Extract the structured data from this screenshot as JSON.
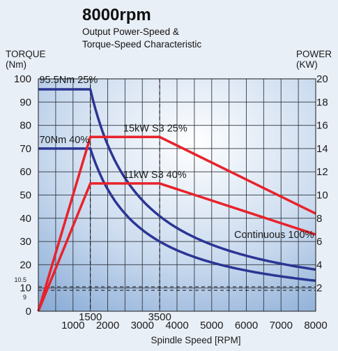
{
  "chart_data": {
    "type": "line",
    "title": "8000rpm",
    "subtitle_lines": [
      "Output Power-Speed &",
      "Torque-Speed Characteristic"
    ],
    "xlabel": "Spindle Speed [RPM]",
    "ylabel_left_lines": [
      "TORQUE",
      "(Nm)"
    ],
    "ylabel_right_lines": [
      "POWER",
      "(KW)"
    ],
    "xlim": [
      0,
      8000
    ],
    "ylim_left": [
      0,
      100
    ],
    "ylim_right": [
      0,
      20
    ],
    "x_ticks": [
      {
        "value": 1000,
        "label": "1000",
        "row": 2
      },
      {
        "value": 1500,
        "label": "1500",
        "row": 1
      },
      {
        "value": 2000,
        "label": "2000",
        "row": 2
      },
      {
        "value": 3000,
        "label": "3000",
        "row": 2
      },
      {
        "value": 3500,
        "label": "3500",
        "row": 1
      },
      {
        "value": 4000,
        "label": "4000",
        "row": 2
      },
      {
        "value": 5000,
        "label": "5000",
        "row": 2
      },
      {
        "value": 6000,
        "label": "6000",
        "row": 2
      },
      {
        "value": 7000,
        "label": "7000",
        "row": 2
      },
      {
        "value": 8000,
        "label": "8000",
        "row": 2
      }
    ],
    "y_ticks_left": [
      {
        "value": 0,
        "label": "0",
        "small": false
      },
      {
        "value": 9,
        "label": "9",
        "small": true
      },
      {
        "value": 10,
        "label": "10",
        "small": false
      },
      {
        "value": 10.5,
        "label": "10.5",
        "small": true
      },
      {
        "value": 20,
        "label": "20",
        "small": false
      },
      {
        "value": 30,
        "label": "30",
        "small": false
      },
      {
        "value": 40,
        "label": "40",
        "small": false
      },
      {
        "value": 50,
        "label": "50",
        "small": false
      },
      {
        "value": 60,
        "label": "60",
        "small": false
      },
      {
        "value": 70,
        "label": "70",
        "small": false
      },
      {
        "value": 80,
        "label": "80",
        "small": false
      },
      {
        "value": 90,
        "label": "90",
        "small": false
      },
      {
        "value": 100,
        "label": "100",
        "small": false
      }
    ],
    "y_ticks_right": [
      {
        "value": 2,
        "label": "2"
      },
      {
        "value": 4,
        "label": "4"
      },
      {
        "value": 6,
        "label": "6"
      },
      {
        "value": 8,
        "label": "8"
      },
      {
        "value": 10,
        "label": "10"
      },
      {
        "value": 12,
        "label": "12"
      },
      {
        "value": 14,
        "label": "14"
      },
      {
        "value": 16,
        "label": "16"
      },
      {
        "value": 18,
        "label": "18"
      },
      {
        "value": 20,
        "label": "20"
      }
    ],
    "grid": true,
    "gridlines_x": [
      500,
      1000,
      1500,
      2000,
      2500,
      3000,
      3500,
      4000,
      4500,
      5000,
      5500,
      6000,
      6500,
      7000,
      7500,
      8000
    ],
    "gridlines_y": [
      10,
      20,
      30,
      40,
      50,
      60,
      70,
      80,
      90,
      100
    ],
    "reference_lines": {
      "vertical_dashed_x": [
        1500,
        3500
      ],
      "horizontal_dashed_y_left": [
        9,
        10.5
      ]
    },
    "colors": {
      "torque": "#2b3593",
      "power": "#e8222b",
      "background": "#e9eff7"
    },
    "series": [
      {
        "axis": "left",
        "color": "#2b3593",
        "points": [
          [
            0,
            95.5
          ],
          [
            1500,
            95.5
          ],
          [
            1800,
            79.6
          ],
          [
            2000,
            71.6
          ],
          [
            2500,
            57.3
          ],
          [
            3000,
            47.7
          ],
          [
            3500,
            40.9
          ],
          [
            4000,
            35.8
          ],
          [
            5000,
            28.6
          ],
          [
            6000,
            23.9
          ],
          [
            7000,
            20.5
          ],
          [
            8000,
            17.9
          ]
        ]
      },
      {
        "axis": "left",
        "color": "#2b3593",
        "points": [
          [
            0,
            70
          ],
          [
            1500,
            70
          ],
          [
            1700,
            61.8
          ],
          [
            2000,
            52.5
          ],
          [
            2500,
            42
          ],
          [
            3000,
            35
          ],
          [
            3500,
            30
          ],
          [
            4000,
            26.3
          ],
          [
            5000,
            21
          ],
          [
            6000,
            17.5
          ],
          [
            7000,
            15
          ],
          [
            8000,
            13.1
          ]
        ]
      },
      {
        "axis": "right",
        "color": "#e8222b",
        "points": [
          [
            0,
            0
          ],
          [
            1500,
            15
          ],
          [
            3500,
            15
          ],
          [
            8000,
            8.4
          ]
        ]
      },
      {
        "axis": "right",
        "color": "#e8222b",
        "points": [
          [
            0,
            0
          ],
          [
            1500,
            11
          ],
          [
            3500,
            11
          ],
          [
            8000,
            6.6
          ]
        ]
      }
    ],
    "annotations": [
      {
        "text": "95.5Nm 25%",
        "x": 30,
        "y_left": 98.2,
        "anchor": "start"
      },
      {
        "text": "70Nm 40%",
        "x": 30,
        "y_left": 72.4,
        "anchor": "start"
      },
      {
        "text": "15kW S3 25%",
        "x": 2450,
        "y_left": 77.4,
        "anchor": "start"
      },
      {
        "text": "11kW S3 40%",
        "x": 2450,
        "y_left": 57.4,
        "anchor": "start"
      },
      {
        "text": "Continuous 100%",
        "x": 7950,
        "y_left": 31.5,
        "anchor": "end"
      }
    ]
  }
}
